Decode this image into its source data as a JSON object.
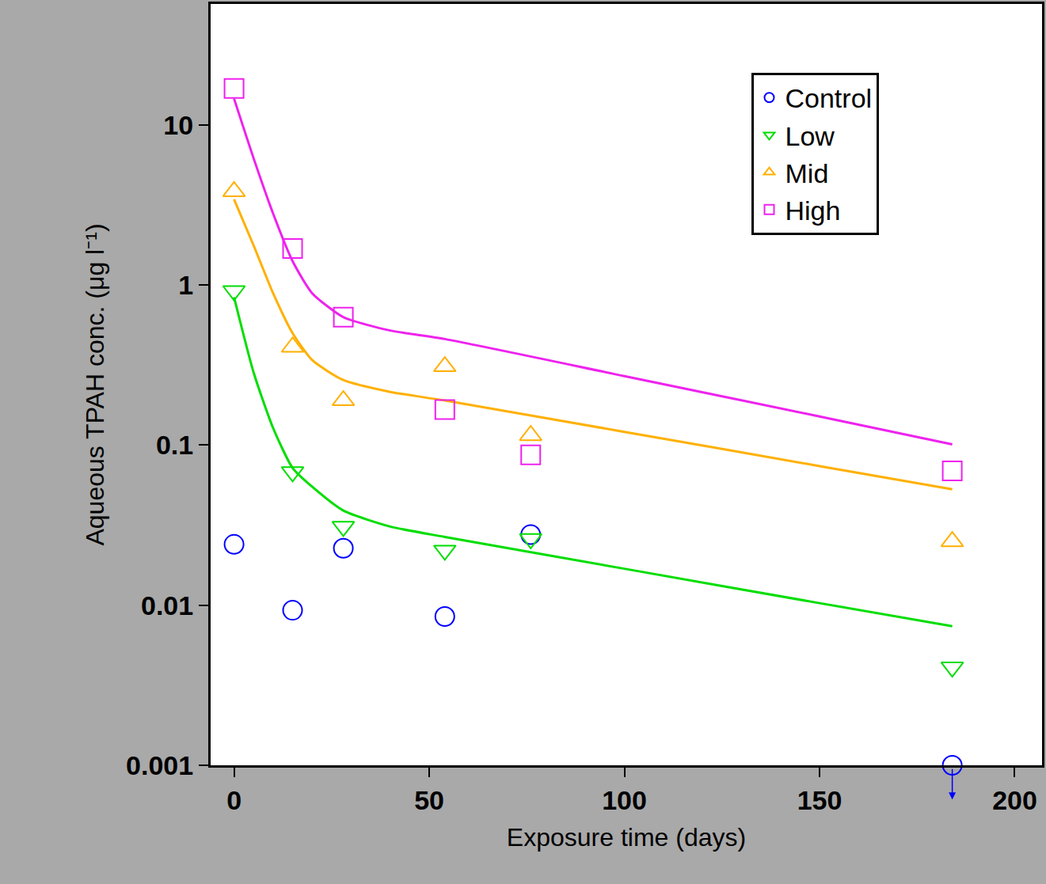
{
  "chart_data": {
    "type": "scatter",
    "x_label": "Exposure time (days)",
    "y_label": "Aqueous TPAH conc. (μg l⁻¹)",
    "log": "y",
    "grid": false,
    "legend": "upper right",
    "xlim": [
      -6,
      207
    ],
    "xticks": [
      0,
      50,
      100,
      150,
      200
    ],
    "ylim": [
      0.001,
      57
    ],
    "yticks": [
      0.001,
      0.01,
      0.1,
      1,
      10
    ],
    "series": [
      {
        "name": "Control",
        "color": "#0000ff",
        "marker": "circle-open",
        "x": [
          0,
          15,
          28,
          54,
          76,
          184
        ],
        "values": [
          0.024,
          0.0093,
          0.0227,
          0.0085,
          0.0276,
          0.001
        ]
      },
      {
        "name": "Low",
        "color": "#00dd00",
        "marker": "triangle-down-open",
        "x": [
          0,
          15,
          28,
          54,
          76,
          184
        ],
        "values": [
          0.92,
          0.068,
          0.031,
          0.022,
          0.026,
          0.0041
        ],
        "fit": {
          "x": [
            0,
            5,
            10,
            15,
            20,
            28,
            40,
            54,
            100,
            150,
            184
          ],
          "values": [
            0.84,
            0.285,
            0.128,
            0.072,
            0.055,
            0.039,
            0.031,
            0.0267,
            0.0169,
            0.0103,
            0.0074
          ]
        }
      },
      {
        "name": "Mid",
        "color": "#ffb000",
        "marker": "triangle-up-open",
        "x": [
          0,
          15,
          28,
          54,
          76,
          184
        ],
        "values": [
          3.84,
          0.41,
          0.19,
          0.31,
          0.115,
          0.025
        ],
        "fit": {
          "x": [
            0,
            5,
            10,
            15,
            20,
            28,
            40,
            54,
            100,
            150,
            184
          ],
          "values": [
            3.43,
            1.77,
            0.89,
            0.5,
            0.34,
            0.255,
            0.215,
            0.19,
            0.121,
            0.074,
            0.053
          ]
        }
      },
      {
        "name": "High",
        "color": "#ee22ee",
        "marker": "square-open",
        "x": [
          0,
          15,
          28,
          54,
          76,
          184
        ],
        "values": [
          16.9,
          1.69,
          0.63,
          0.167,
          0.087,
          0.069
        ],
        "fit": {
          "x": [
            0,
            5,
            10,
            15,
            20,
            28,
            40,
            54,
            100,
            150,
            184
          ],
          "values": [
            14.6,
            6.2,
            2.8,
            1.41,
            0.89,
            0.63,
            0.52,
            0.46,
            0.27,
            0.151,
            0.101
          ]
        }
      }
    ]
  }
}
